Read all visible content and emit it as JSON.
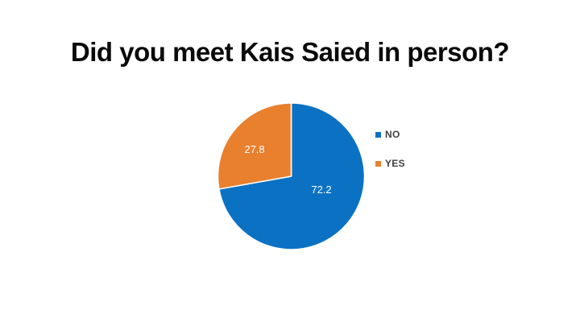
{
  "title": {
    "text": "Did you meet Kais Saied in person?"
  },
  "chart_data": {
    "type": "pie",
    "title": "Did you meet Kais Saied in person?",
    "categories": [
      "NO",
      "YES"
    ],
    "values": [
      72.2,
      27.8
    ],
    "data_labels": [
      "72.2",
      "27.8"
    ],
    "colors": [
      "#0b72c3",
      "#e8802e"
    ],
    "start_angle_deg": 0,
    "direction": "clockwise",
    "legend_position": "right",
    "background": "#ffffff",
    "label_color": "#ffffff",
    "legend_text_color": "#3f3f3f"
  },
  "legend": {
    "items": [
      {
        "label": "NO"
      },
      {
        "label": "YES"
      }
    ]
  }
}
